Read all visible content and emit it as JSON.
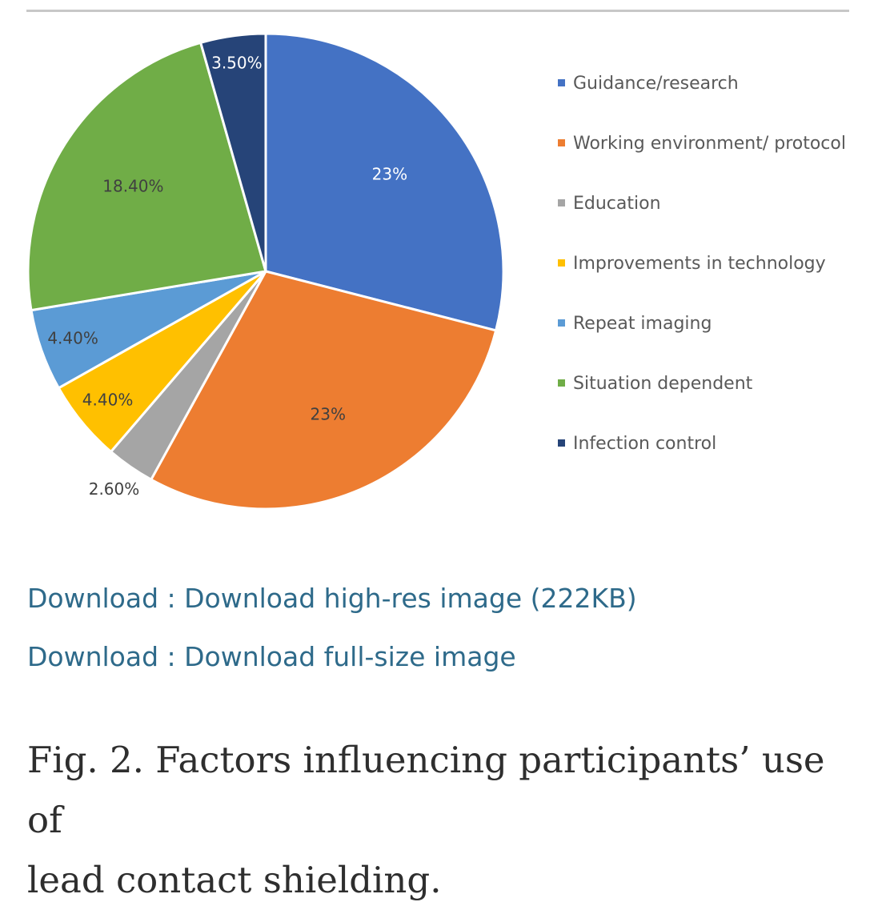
{
  "chart_data": {
    "type": "pie",
    "title": "",
    "slices": [
      {
        "label": "Guidance/research",
        "value": 23,
        "display": "23%",
        "color": "#4472c4"
      },
      {
        "label": "Working environment/ protocol",
        "value": 23,
        "display": "23%",
        "color": "#ed7d31"
      },
      {
        "label": "Education",
        "value": 2.6,
        "display": "2.60%",
        "color": "#a5a5a5"
      },
      {
        "label": "Improvements in technology",
        "value": 4.4,
        "display": "4.40%",
        "color": "#ffc000"
      },
      {
        "label": "Repeat imaging",
        "value": 4.4,
        "display": "4.40%",
        "color": "#5b9bd5"
      },
      {
        "label": "Situation dependent",
        "value": 18.4,
        "display": "18.40%",
        "color": "#70ad47"
      },
      {
        "label": "Infection control",
        "value": 3.5,
        "display": "3.50%",
        "color": "#264478"
      }
    ],
    "legend_position": "right"
  },
  "downloads": [
    "Download : Download high-res image (222KB)",
    "Download : Download full-size image"
  ],
  "caption": {
    "line1": "Fig. 2. Factors influencing participants’ use of",
    "line2": "lead contact shielding."
  }
}
